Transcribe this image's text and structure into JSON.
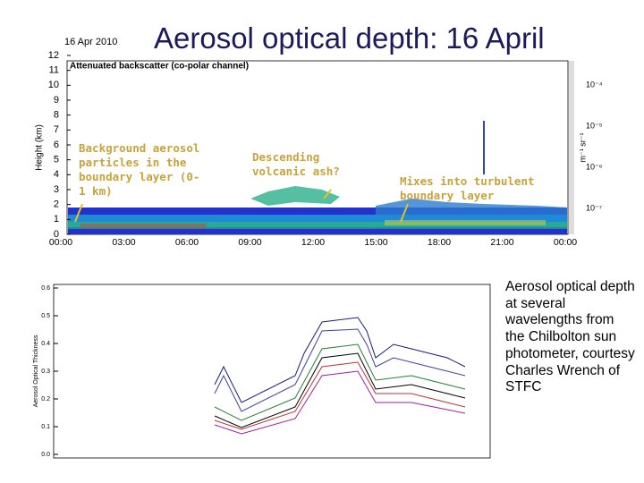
{
  "title": "Aerosol optical depth: 16 April",
  "lidar": {
    "date": "16 Apr 2010",
    "subtitle": "Attenuated backscatter (co-polar channel)",
    "y_label": "Height (km)",
    "y_ticks": [
      "0",
      "1",
      "2",
      "3",
      "4",
      "5",
      "6",
      "7",
      "8",
      "9",
      "10",
      "11",
      "12"
    ],
    "x_ticks": [
      "00:00",
      "03:00",
      "06:00",
      "09:00",
      "12:00",
      "15:00",
      "18:00",
      "21:00",
      "00:00"
    ],
    "colorbar_ticks": [
      "10⁻⁴",
      "10⁻⁵",
      "10⁻⁶",
      "10⁻⁷"
    ],
    "colorbar_label": "m⁻¹ sr⁻¹",
    "annotations": [
      "Background aerosol particles in the boundary layer (0-1 km)",
      "Descending volcanic ash?",
      "Mixes into turbulent boundary layer"
    ]
  },
  "photometer": {
    "y_label": "Aerosol Optical Thickness",
    "y_ticks": [
      "0.0",
      "0.1",
      "0.2",
      "0.3",
      "0.4",
      "0.5",
      "0.6"
    ]
  },
  "caption": "Aerosol optical depth at several wavelengths from the Chilbolton sun photometer, courtesy Charles Wrench of STFC"
}
